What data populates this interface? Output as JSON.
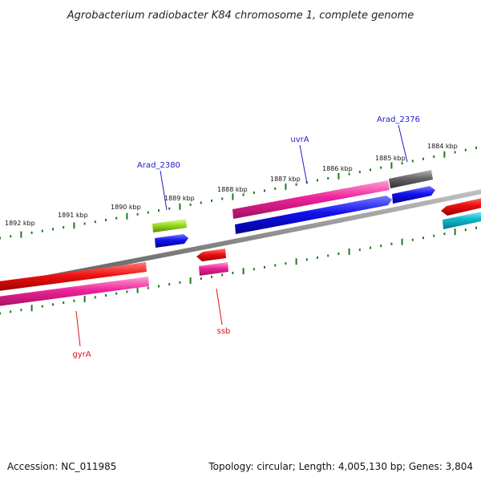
{
  "title": "Agrobacterium radiobacter K84 chromosome 1, complete genome",
  "footer": {
    "accession": "Accession: NC_011985",
    "summary": "Topology: circular; Length: 4,005,130 bp; Genes: 3,804"
  },
  "ticks": [
    {
      "label": "1892 kbp"
    },
    {
      "label": "1891 kbp"
    },
    {
      "label": "1890 kbp"
    },
    {
      "label": "1889 kbp"
    },
    {
      "label": "1888 kbp"
    },
    {
      "label": "1887 kbp"
    },
    {
      "label": "1886 kbp"
    },
    {
      "label": "1885 kbp"
    },
    {
      "label": "1884 kbp"
    }
  ],
  "gene_labels": [
    {
      "text": "Arad_2380",
      "color": "#1a1acc"
    },
    {
      "text": "uvrA",
      "color": "#1a1acc"
    },
    {
      "text": "Arad_2376",
      "color": "#1a1acc"
    },
    {
      "text": "gyrA",
      "color": "#dd1111"
    },
    {
      "text": "ssb",
      "color": "#dd1111"
    }
  ],
  "colors": {
    "backbone": "#8a8a8a",
    "tick": "#1e7a1e",
    "red": "#ee1111",
    "magenta": "#ee2299",
    "blue": "#1111ee",
    "gray": "#666666",
    "lime": "#99dd22",
    "cyan": "#11bbcc"
  }
}
